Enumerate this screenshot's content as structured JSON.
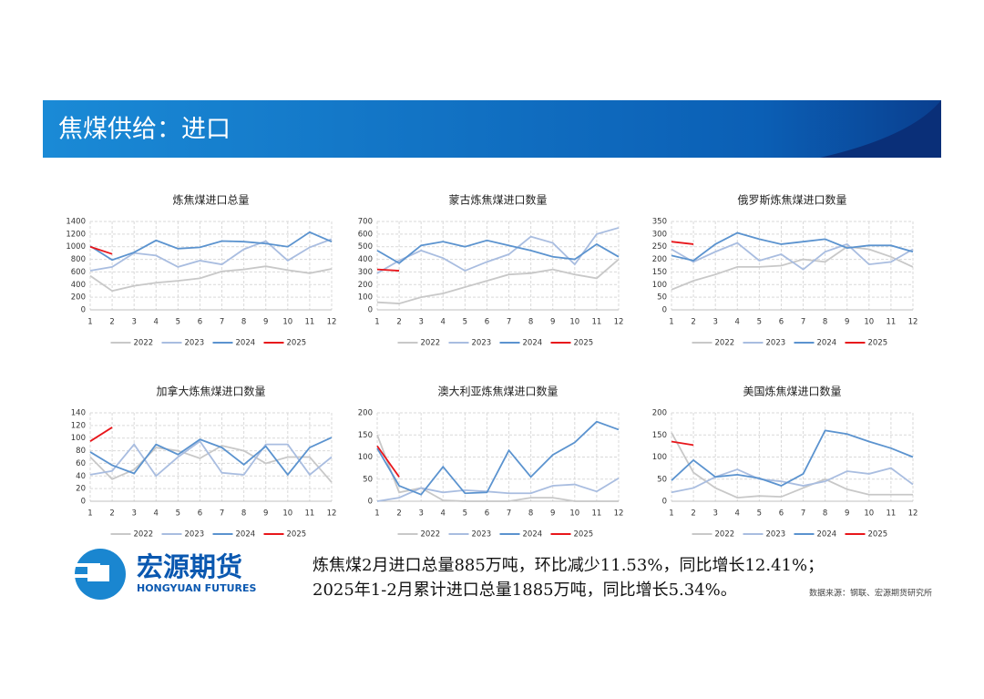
{
  "title": "焦煤供给：进口",
  "chart_data": [
    {
      "type": "line",
      "title": "炼焦煤进口总量",
      "categories": [
        "1",
        "2",
        "3",
        "4",
        "5",
        "6",
        "7",
        "8",
        "9",
        "10",
        "11",
        "12"
      ],
      "ylim": [
        0,
        1400
      ],
      "yticks": [
        0,
        200,
        400,
        600,
        800,
        1000,
        1200,
        1400
      ],
      "grid": true,
      "series": [
        {
          "name": "2022",
          "color": "#c8c8c8",
          "values": [
            540,
            300,
            380,
            430,
            460,
            500,
            610,
            640,
            690,
            630,
            580,
            650
          ]
        },
        {
          "name": "2023",
          "color": "#a9bde0",
          "values": [
            620,
            680,
            900,
            860,
            680,
            780,
            720,
            960,
            1090,
            780,
            990,
            1120
          ]
        },
        {
          "name": "2024",
          "color": "#5b93cf",
          "values": [
            1010,
            790,
            910,
            1100,
            970,
            990,
            1090,
            1080,
            1050,
            1000,
            1230,
            1080
          ]
        },
        {
          "name": "2025",
          "color": "#e8161b",
          "values": [
            1000,
            885,
            null,
            null,
            null,
            null,
            null,
            null,
            null,
            null,
            null,
            null
          ]
        }
      ]
    },
    {
      "type": "line",
      "title": "蒙古炼焦煤进口数量",
      "categories": [
        "1",
        "2",
        "3",
        "4",
        "5",
        "6",
        "7",
        "8",
        "9",
        "10",
        "11",
        "12"
      ],
      "ylim": [
        0,
        700
      ],
      "yticks": [
        0,
        100,
        200,
        300,
        400,
        500,
        600,
        700
      ],
      "grid": true,
      "series": [
        {
          "name": "2022",
          "color": "#c8c8c8",
          "values": [
            60,
            50,
            100,
            130,
            180,
            230,
            280,
            290,
            320,
            280,
            250,
            400
          ]
        },
        {
          "name": "2023",
          "color": "#a9bde0",
          "values": [
            290,
            390,
            470,
            410,
            310,
            380,
            440,
            580,
            530,
            360,
            600,
            650
          ]
        },
        {
          "name": "2024",
          "color": "#5b93cf",
          "values": [
            470,
            370,
            510,
            540,
            500,
            550,
            510,
            470,
            420,
            400,
            520,
            420
          ]
        },
        {
          "name": "2025",
          "color": "#e8161b",
          "values": [
            320,
            310,
            null,
            null,
            null,
            null,
            null,
            null,
            null,
            null,
            null,
            null
          ]
        }
      ]
    },
    {
      "type": "line",
      "title": "俄罗斯炼焦煤进口数量",
      "categories": [
        "1",
        "2",
        "3",
        "4",
        "5",
        "6",
        "7",
        "8",
        "9",
        "10",
        "11",
        "12"
      ],
      "ylim": [
        0,
        350
      ],
      "yticks": [
        0,
        50,
        100,
        150,
        200,
        250,
        300,
        350
      ],
      "grid": true,
      "series": [
        {
          "name": "2022",
          "color": "#c8c8c8",
          "values": [
            80,
            115,
            140,
            170,
            170,
            175,
            200,
            190,
            250,
            240,
            210,
            170
          ]
        },
        {
          "name": "2023",
          "color": "#a9bde0",
          "values": [
            240,
            190,
            230,
            265,
            195,
            220,
            160,
            230,
            260,
            180,
            190,
            240
          ]
        },
        {
          "name": "2024",
          "color": "#5b93cf",
          "values": [
            215,
            195,
            260,
            305,
            280,
            260,
            270,
            280,
            245,
            255,
            255,
            230
          ]
        },
        {
          "name": "2025",
          "color": "#e8161b",
          "values": [
            270,
            260,
            null,
            null,
            null,
            null,
            null,
            null,
            null,
            null,
            null,
            null
          ]
        }
      ]
    },
    {
      "type": "line",
      "title": "加拿大炼焦煤进口数量",
      "categories": [
        "1",
        "2",
        "3",
        "4",
        "5",
        "6",
        "7",
        "8",
        "9",
        "10",
        "11",
        "12"
      ],
      "ylim": [
        0,
        140
      ],
      "yticks": [
        0,
        20,
        40,
        60,
        80,
        100,
        120,
        140
      ],
      "grid": true,
      "series": [
        {
          "name": "2022",
          "color": "#c8c8c8",
          "values": [
            70,
            35,
            50,
            85,
            80,
            68,
            88,
            80,
            60,
            70,
            70,
            30
          ]
        },
        {
          "name": "2023",
          "color": "#a9bde0",
          "values": [
            42,
            48,
            90,
            40,
            70,
            95,
            45,
            42,
            90,
            90,
            42,
            70
          ]
        },
        {
          "name": "2024",
          "color": "#5b93cf",
          "values": [
            78,
            57,
            44,
            90,
            74,
            98,
            85,
            58,
            87,
            42,
            85,
            101
          ]
        },
        {
          "name": "2025",
          "color": "#e8161b",
          "values": [
            95,
            117,
            null,
            null,
            null,
            null,
            null,
            null,
            null,
            null,
            null,
            null
          ]
        }
      ]
    },
    {
      "type": "line",
      "title": "澳大利亚炼焦煤进口数量",
      "categories": [
        "1",
        "2",
        "3",
        "4",
        "5",
        "6",
        "7",
        "8",
        "9",
        "10",
        "11",
        "12"
      ],
      "ylim": [
        0,
        200
      ],
      "yticks": [
        0,
        50,
        100,
        150,
        200
      ],
      "grid": true,
      "series": [
        {
          "name": "2022",
          "color": "#c8c8c8",
          "values": [
            150,
            20,
            30,
            2,
            0,
            0,
            0,
            8,
            8,
            0,
            0,
            0
          ]
        },
        {
          "name": "2023",
          "color": "#a9bde0",
          "values": [
            0,
            8,
            30,
            20,
            25,
            22,
            18,
            18,
            35,
            38,
            22,
            52
          ]
        },
        {
          "name": "2024",
          "color": "#5b93cf",
          "values": [
            120,
            35,
            15,
            78,
            18,
            20,
            115,
            55,
            105,
            133,
            180,
            162
          ]
        },
        {
          "name": "2025",
          "color": "#e8161b",
          "values": [
            125,
            55,
            null,
            null,
            null,
            null,
            null,
            null,
            null,
            null,
            null,
            null
          ]
        }
      ]
    },
    {
      "type": "line",
      "title": "美国炼焦煤进口数量",
      "categories": [
        "1",
        "2",
        "3",
        "4",
        "5",
        "6",
        "7",
        "8",
        "9",
        "10",
        "11",
        "12"
      ],
      "ylim": [
        0,
        200
      ],
      "yticks": [
        0,
        50,
        100,
        150,
        200
      ],
      "grid": true,
      "series": [
        {
          "name": "2022",
          "color": "#c8c8c8",
          "values": [
            155,
            65,
            30,
            8,
            12,
            10,
            30,
            50,
            27,
            15,
            15,
            15
          ]
        },
        {
          "name": "2023",
          "color": "#a9bde0",
          "values": [
            20,
            30,
            55,
            72,
            50,
            45,
            35,
            45,
            68,
            62,
            75,
            38
          ]
        },
        {
          "name": "2024",
          "color": "#5b93cf",
          "values": [
            47,
            93,
            55,
            60,
            52,
            35,
            62,
            160,
            152,
            135,
            120,
            100
          ]
        },
        {
          "name": "2025",
          "color": "#e8161b",
          "values": [
            135,
            127,
            null,
            null,
            null,
            null,
            null,
            null,
            null,
            null,
            null,
            null
          ]
        }
      ]
    }
  ],
  "logo": {
    "name": "宏源期货",
    "english": "HONGYUAN FUTURES"
  },
  "summary": [
    "炼焦煤2月进口总量885万吨，环比减少11.53%，同比增长12.41%；",
    "2025年1-2月累计进口总量1885万吨，同比增长5.34%。"
  ],
  "source": "数据来源：钢联、宏源期货研究所"
}
